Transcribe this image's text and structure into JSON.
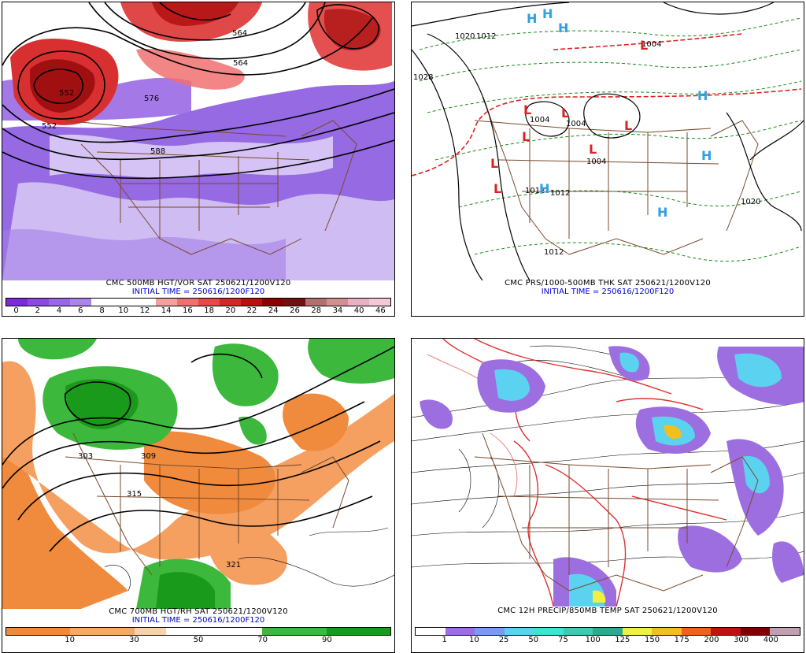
{
  "panels": [
    {
      "caption": "CMC 500MB HGT/VOR SAT 250621/1200V120",
      "init": "INITIAL TIME = 250616/1200F120",
      "contour_labels": [
        "552",
        "564",
        "576",
        "588",
        "552",
        "564"
      ],
      "colorbar": {
        "colors": [
          "#7b2bd6",
          "#8a4ae0",
          "#9a67e4",
          "#ab84ea",
          "#ffffff",
          "#ffffff",
          "#ffffff",
          "#f5a0a0",
          "#ee7070",
          "#e44848",
          "#d02828",
          "#b81010",
          "#8a0000",
          "#701010",
          "#b07070",
          "#d09090",
          "#e8b0c0",
          "#f5c8d8"
        ],
        "labels": [
          "0",
          "2",
          "4",
          "6",
          "8",
          "10",
          "12",
          "14",
          "16",
          "18",
          "20",
          "22",
          "24",
          "26",
          "28",
          "34",
          "40",
          "46"
        ]
      }
    },
    {
      "caption": "CMC PRS/1000-500MB THK SAT 250621/1200V120",
      "init": "INITIAL TIME = 250616/1200F120",
      "pressure_labels": [
        "1020",
        "1012",
        "1028",
        "1004",
        "1004",
        "1004",
        "1004",
        "1012",
        "1012",
        "1012",
        "1020"
      ],
      "lows": [
        "L",
        "L",
        "L",
        "L",
        "L",
        "L",
        "L",
        "L"
      ],
      "highs": [
        "H",
        "H",
        "H",
        "H",
        "H",
        "H",
        "H"
      ]
    },
    {
      "caption": "CMC 700MB HGT/RH SAT 250621/1200V120",
      "init": "INITIAL TIME = 250616/1200F120",
      "contour_labels": [
        "303",
        "309",
        "315",
        "321"
      ],
      "colorbar": {
        "colors": [
          "#f08a3c",
          "#f08a3c",
          "#f5aa6a",
          "#f5aa6a",
          "#fad2a8",
          "#ffffff",
          "#ffffff",
          "#ffffff",
          "#3cb83c",
          "#3cb83c",
          "#1a9a1a",
          "#1a9a1a"
        ],
        "labels": [
          "10",
          "30",
          "50",
          "70",
          "90"
        ]
      }
    },
    {
      "caption": "CMC 12H PRECIP/850MB TEMP SAT 250621/1200V120",
      "colorbar": {
        "colors": [
          "#ffffff",
          "#9d6ee0",
          "#7a9cf0",
          "#5ad2f0",
          "#38e6d2",
          "#40c8b0",
          "#30a890",
          "#f0f040",
          "#f0c020",
          "#f06020",
          "#c01010",
          "#800000",
          "#c0a0b0"
        ],
        "labels": [
          "1",
          "10",
          "25",
          "50",
          "75",
          "100",
          "125",
          "150",
          "175",
          "200",
          "300",
          "400"
        ]
      }
    }
  ]
}
